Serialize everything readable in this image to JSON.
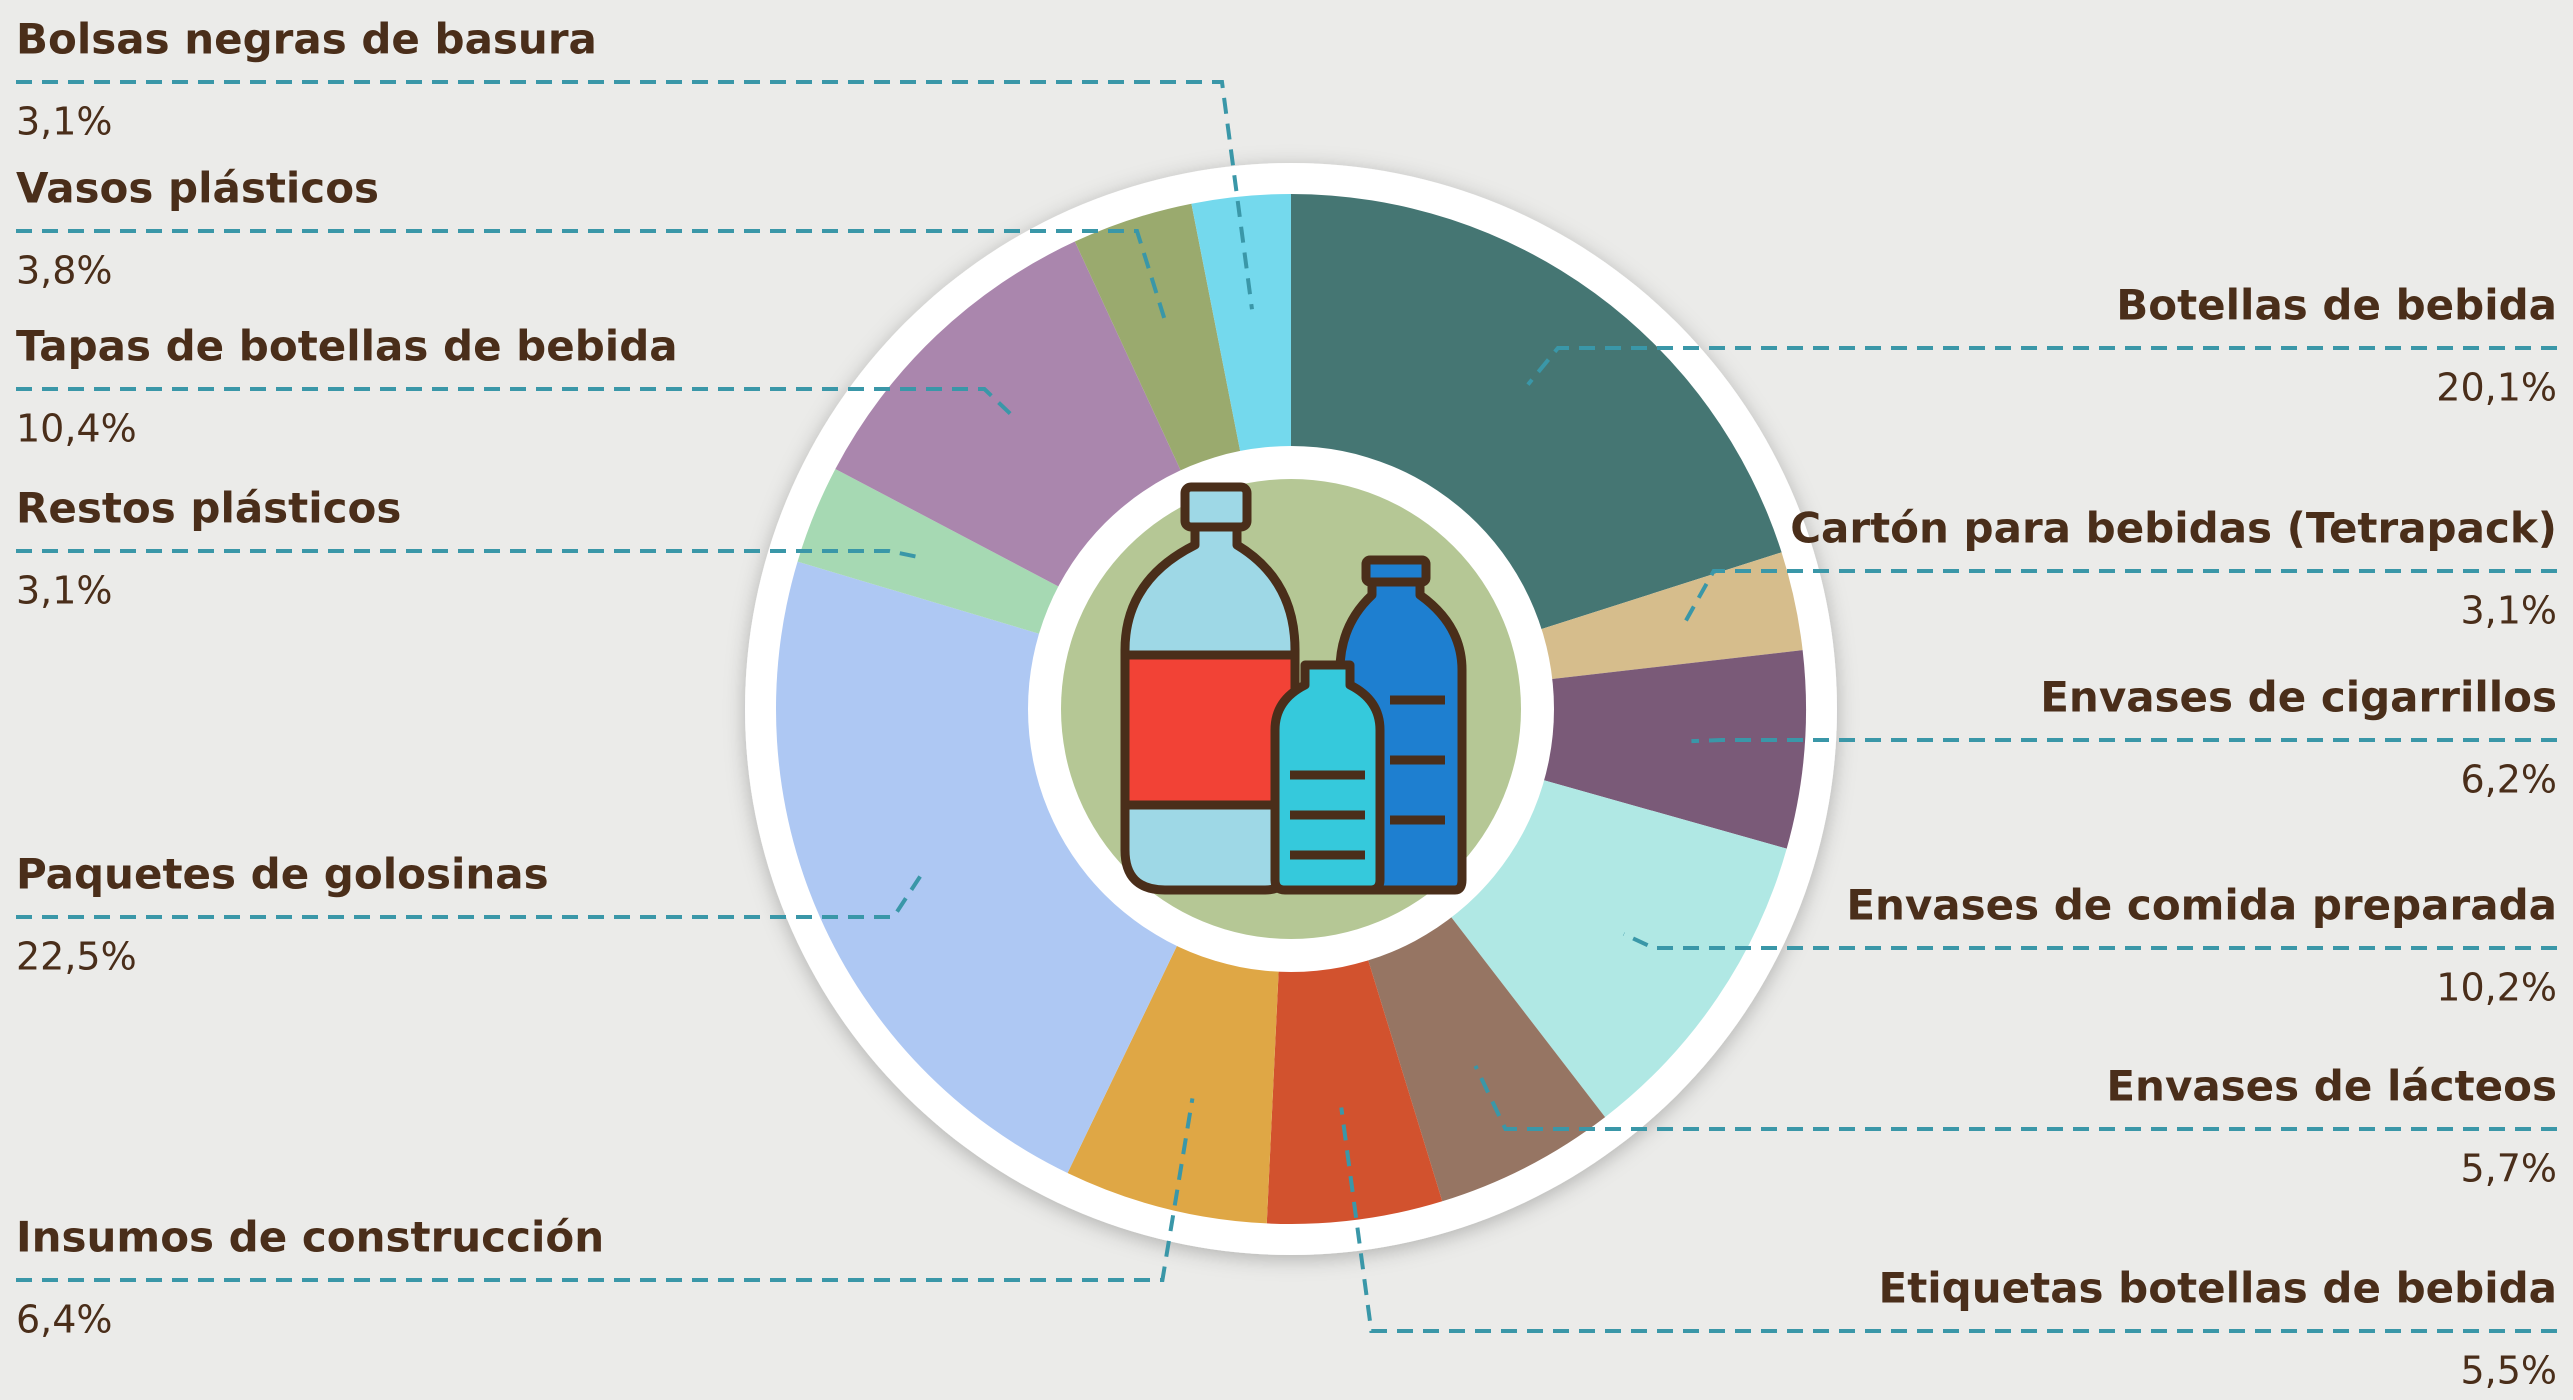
{
  "chart_data": {
    "type": "pie",
    "categories": [
      "Botellas de bebida",
      "Cartón para bebidas (Tetrapack)",
      "Envases de cigarrillos",
      "Envases de comida preparada",
      "Envases de lácteos",
      "Etiquetas botellas de bebida",
      "Insumos de construcción",
      "Paquetes de golosinas",
      "Restos plásticos",
      "Tapas de botellas de bebida",
      "Vasos plásticos",
      "Bolsas negras de basura"
    ],
    "values": [
      20.1,
      3.1,
      6.2,
      10.2,
      5.7,
      5.5,
      6.4,
      22.5,
      3.1,
      10.4,
      3.8,
      3.1
    ],
    "value_labels": [
      "20,1%",
      "3,1%",
      "6,2%",
      "10,2%",
      "5,7%",
      "5,5%",
      "6,4%",
      "22,5%",
      "3,1%",
      "10,4%",
      "3,8%",
      "3,1%"
    ],
    "colors": [
      "#457673",
      "#d6bd8c",
      "#7a5a78",
      "#b0e8e4",
      "#967563",
      "#d2522e",
      "#dfa745",
      "#aec8f3",
      "#a6d9b3",
      "#aa86ad",
      "#9aaa6e",
      "#74d9ed"
    ]
  }
}
